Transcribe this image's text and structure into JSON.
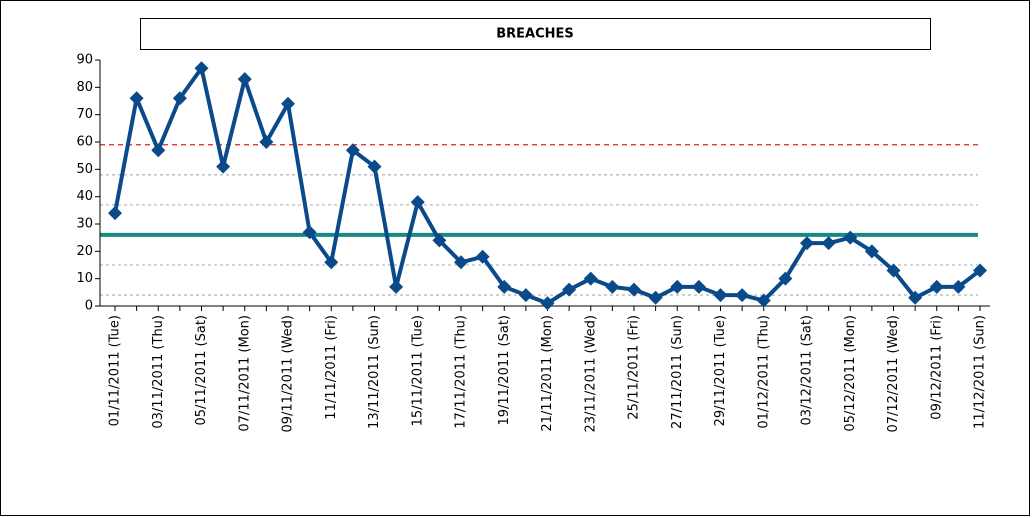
{
  "chart_data": {
    "type": "line",
    "title": "BREACHES",
    "categories": [
      "01/11/2011 (Tue)",
      null,
      "03/11/2011 (Thu)",
      null,
      "05/11/2011 (Sat)",
      null,
      "07/11/2011 (Mon)",
      null,
      "09/11/2011 (Wed)",
      null,
      "11/11/2011 (Fri)",
      null,
      "13/11/2011 (Sun)",
      null,
      "15/11/2011 (Tue)",
      null,
      "17/11/2011 (Thu)",
      null,
      "19/11/2011 (Sat)",
      null,
      "21/11/2011 (Mon)",
      null,
      "23/11/2011 (Wed)",
      null,
      "25/11/2011 (Fri)",
      null,
      "27/11/2011 (Sun)",
      null,
      "29/11/2011 (Tue)",
      null,
      "01/12/2011 (Thu)",
      null,
      "03/12/2011 (Sat)",
      null,
      "05/12/2011 (Mon)",
      null,
      "07/12/2011 (Wed)",
      null,
      "09/12/2011 (Fri)",
      null,
      "11/12/2011 (Sun)"
    ],
    "values": [
      34,
      76,
      57,
      76,
      87,
      51,
      83,
      60,
      74,
      27,
      16,
      57,
      51,
      7,
      38,
      24,
      16,
      18,
      7,
      4,
      1,
      6,
      10,
      7,
      6,
      3,
      7,
      7,
      4,
      4,
      2,
      10,
      23,
      23,
      25,
      20,
      13,
      3,
      7,
      7,
      13
    ],
    "color": "#0a4a8a",
    "ylim": [
      0,
      90
    ],
    "yticks": [
      0,
      10,
      20,
      30,
      40,
      50,
      60,
      70,
      80,
      90
    ],
    "reference_lines": [
      {
        "value": 59,
        "color": "#e02020",
        "style": "dashed"
      },
      {
        "value": 48,
        "color": "#bbbbbb",
        "style": "dotted"
      },
      {
        "value": 37,
        "color": "#bbbbbb",
        "style": "dotted"
      },
      {
        "value": 26,
        "color": "#168a80",
        "style": "solid"
      },
      {
        "value": 15,
        "color": "#bbbbbb",
        "style": "dotted"
      },
      {
        "value": 4,
        "color": "#bbbbbb",
        "style": "dotted"
      }
    ]
  }
}
